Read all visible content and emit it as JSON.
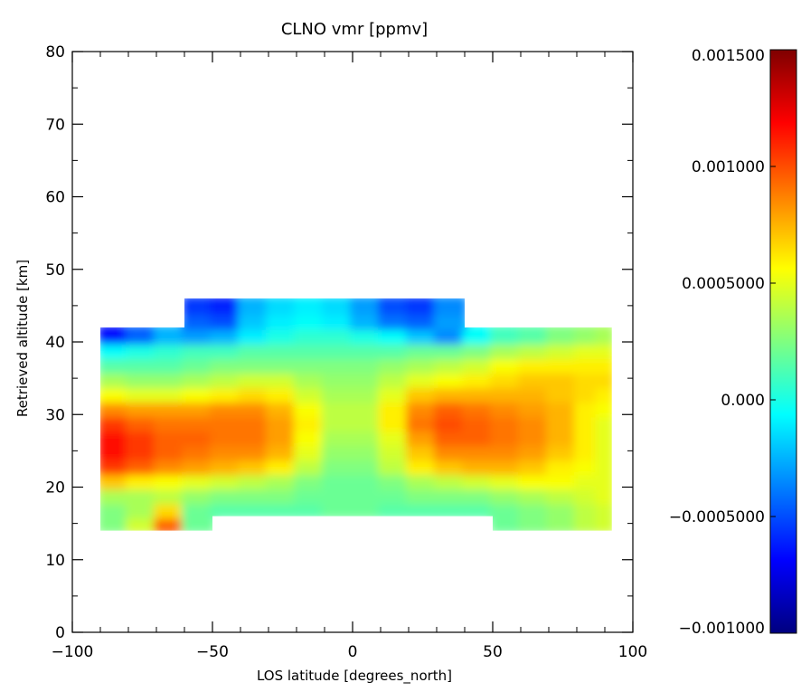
{
  "chart_data": [
    {
      "type": "heatmap",
      "title": "CLNO vmr [ppmv]",
      "xlabel": "LOS latitude [degrees_north]",
      "ylabel": "Retrieved altitude [km]",
      "xlim": [
        -100,
        100
      ],
      "ylim": [
        0,
        80
      ],
      "x_ticks": [
        -100,
        -50,
        0,
        50,
        100
      ],
      "x_tick_labels": [
        "−100",
        "−50",
        "0",
        "50",
        "100"
      ],
      "y_ticks": [
        0,
        10,
        20,
        30,
        40,
        50,
        60,
        70,
        80
      ],
      "y_tick_labels": [
        "0",
        "10",
        "20",
        "30",
        "40",
        "50",
        "60",
        "70",
        "80"
      ],
      "colormap": "jet",
      "value_range": [
        -0.001,
        0.0015
      ],
      "x": [
        -85,
        -75,
        -65,
        -55,
        -45,
        -35,
        -25,
        -15,
        -5,
        5,
        15,
        25,
        35,
        45,
        55,
        65,
        75,
        85,
        90
      ],
      "y": [
        15,
        17,
        19,
        21,
        23,
        25,
        27,
        29,
        31,
        33,
        35,
        37,
        39,
        41,
        43,
        45
      ],
      "grid": [
        [
          0.00025,
          0.00045,
          0.00095,
          0.0002,
          null,
          null,
          null,
          null,
          null,
          null,
          null,
          null,
          null,
          null,
          0.0002,
          0.00025,
          0.0003,
          0.0004,
          0.00045
        ],
        [
          0.00025,
          0.00035,
          0.00065,
          0.0002,
          0.00015,
          0.00015,
          0.00015,
          0.00015,
          0.0002,
          0.0002,
          0.00015,
          0.00015,
          0.00015,
          0.00015,
          0.0002,
          0.00025,
          0.0003,
          0.0004,
          0.00045
        ],
        [
          0.00035,
          0.00035,
          0.0004,
          0.0003,
          0.00025,
          0.00025,
          0.00025,
          0.0002,
          0.0002,
          0.0002,
          0.0002,
          0.00025,
          0.00025,
          0.00025,
          0.0003,
          0.00035,
          0.0004,
          0.00045,
          0.0005
        ],
        [
          0.0007,
          0.0006,
          0.00055,
          0.0005,
          0.00045,
          0.0004,
          0.00035,
          0.00025,
          0.0002,
          0.0002,
          0.00025,
          0.00035,
          0.0004,
          0.00045,
          0.0005,
          0.00055,
          0.00055,
          0.0005,
          0.0005
        ],
        [
          0.00105,
          0.00095,
          0.00085,
          0.0008,
          0.00075,
          0.0007,
          0.0006,
          0.0004,
          0.00025,
          0.00025,
          0.0004,
          0.0006,
          0.0007,
          0.00075,
          0.00075,
          0.0007,
          0.0006,
          0.00055,
          0.0005
        ],
        [
          0.00115,
          0.00105,
          0.00095,
          0.0009,
          0.00085,
          0.00085,
          0.00075,
          0.0005,
          0.0003,
          0.0003,
          0.00045,
          0.0007,
          0.00085,
          0.00085,
          0.00085,
          0.0008,
          0.0007,
          0.0006,
          0.0005
        ],
        [
          0.00115,
          0.00105,
          0.00095,
          0.00095,
          0.0009,
          0.0009,
          0.0008,
          0.00055,
          0.00035,
          0.00035,
          0.0005,
          0.0008,
          0.00095,
          0.00095,
          0.0009,
          0.00085,
          0.00075,
          0.0006,
          0.0005
        ],
        [
          0.00105,
          0.00095,
          0.0009,
          0.0009,
          0.0009,
          0.0009,
          0.0008,
          0.0006,
          0.0004,
          0.0004,
          0.0006,
          0.0009,
          0.001,
          0.00095,
          0.0009,
          0.00085,
          0.00075,
          0.0006,
          0.0005
        ],
        [
          0.00085,
          0.0008,
          0.0008,
          0.0008,
          0.00085,
          0.00085,
          0.00075,
          0.00055,
          0.0004,
          0.0004,
          0.0006,
          0.00085,
          0.00095,
          0.0009,
          0.00085,
          0.0008,
          0.00075,
          0.0006,
          0.00055
        ],
        [
          0.00055,
          0.0005,
          0.0005,
          0.00055,
          0.0006,
          0.00065,
          0.0006,
          0.00045,
          0.00035,
          0.00035,
          0.0005,
          0.0007,
          0.00075,
          0.00075,
          0.00075,
          0.00075,
          0.0007,
          0.00065,
          0.0006
        ],
        [
          0.00035,
          0.0003,
          0.0003,
          0.00035,
          0.0004,
          0.00045,
          0.00045,
          0.00035,
          0.0003,
          0.0003,
          0.0004,
          0.0005,
          0.00055,
          0.0006,
          0.00065,
          0.0007,
          0.0007,
          0.00065,
          0.00065
        ],
        [
          0.00015,
          0.00015,
          0.00015,
          0.0002,
          0.00025,
          0.00025,
          0.00025,
          0.00025,
          0.00025,
          0.00025,
          0.0003,
          0.00035,
          0.0004,
          0.00045,
          0.00055,
          0.0006,
          0.0006,
          0.0006,
          0.0006
        ],
        [
          -5e-05,
          0.0,
          5e-05,
          0.0001,
          0.0001,
          0.00015,
          0.00015,
          0.00015,
          0.00015,
          0.00015,
          0.00015,
          0.0002,
          0.0002,
          0.00025,
          0.00035,
          0.0004,
          0.00045,
          0.0005,
          0.0005
        ],
        [
          -0.00065,
          -0.00045,
          -0.00025,
          -0.0003,
          -0.00025,
          -0.0001,
          0.0,
          5e-05,
          5e-05,
          0.0,
          -5e-05,
          -0.0002,
          -0.00035,
          -5e-05,
          0.0001,
          0.00015,
          0.00025,
          0.0003,
          0.00035
        ],
        [
          null,
          null,
          null,
          -0.00045,
          -0.0005,
          -0.0002,
          -0.0001,
          -5e-05,
          -0.0001,
          -0.00025,
          -0.0004,
          -0.00045,
          -0.0003,
          null,
          null,
          null,
          null,
          null,
          null
        ],
        [
          null,
          null,
          null,
          -0.00055,
          -0.0006,
          -0.00025,
          -0.00015,
          -0.0001,
          -0.00015,
          -0.0003,
          -0.0005,
          -0.00055,
          -0.00035,
          null,
          null,
          null,
          null,
          null,
          null
        ]
      ]
    },
    {
      "type": "colorbar",
      "colormap": "jet",
      "range": [
        -0.001,
        0.0015
      ],
      "tick_values": [
        0.0015,
        0.001,
        0.0005,
        0,
        -0.0005,
        -0.001
      ],
      "tick_labels": [
        "0.001500",
        "0.001000",
        "0.0005000",
        "0.000",
        "−0.0005000",
        "−0.001000"
      ]
    }
  ]
}
